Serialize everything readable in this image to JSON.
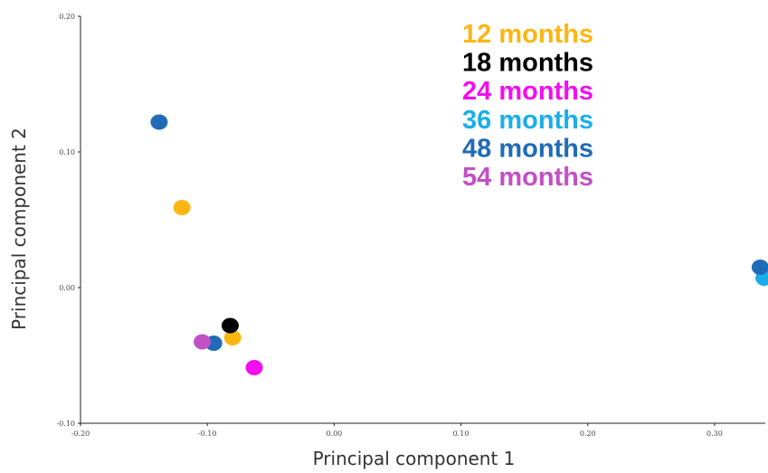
{
  "chart_data": {
    "type": "scatter",
    "title": "",
    "xlabel": "Principal component 1",
    "ylabel": "Principal component 2",
    "xlim": [
      -0.2,
      0.34
    ],
    "ylim": [
      -0.1,
      0.2
    ],
    "x_ticks": [
      {
        "value": -0.2,
        "label": "-0.20"
      },
      {
        "value": -0.1,
        "label": "-0.10"
      },
      {
        "value": 0.0,
        "label": "0.00"
      },
      {
        "value": 0.1,
        "label": "0.10"
      },
      {
        "value": 0.2,
        "label": "0.20"
      },
      {
        "value": 0.3,
        "label": "0.30"
      }
    ],
    "y_ticks": [
      {
        "value": -0.1,
        "label": "-0.10"
      },
      {
        "value": 0.0,
        "label": "0.00"
      },
      {
        "value": 0.1,
        "label": "0.10"
      },
      {
        "value": 0.2,
        "label": "0.20"
      }
    ],
    "grid": false,
    "legend_position": "top-right",
    "series": [
      {
        "name": "12 months",
        "color": "#FBB612",
        "points": [
          [
            -0.12,
            0.059
          ],
          [
            -0.08,
            -0.037
          ]
        ]
      },
      {
        "name": "18 months",
        "color": "#000000",
        "points": [
          [
            -0.082,
            -0.028
          ]
        ]
      },
      {
        "name": "24 months",
        "color": "#F20EEF",
        "points": [
          [
            -0.063,
            -0.059
          ]
        ]
      },
      {
        "name": "36 months",
        "color": "#1AAEE8",
        "points": [
          [
            0.339,
            0.007
          ]
        ]
      },
      {
        "name": "48 months",
        "color": "#1F6BB7",
        "points": [
          [
            -0.138,
            0.122
          ],
          [
            -0.095,
            -0.041
          ],
          [
            0.336,
            0.015
          ]
        ]
      },
      {
        "name": "54 months",
        "color": "#C250C6",
        "points": [
          [
            -0.104,
            -0.04
          ]
        ]
      }
    ]
  }
}
